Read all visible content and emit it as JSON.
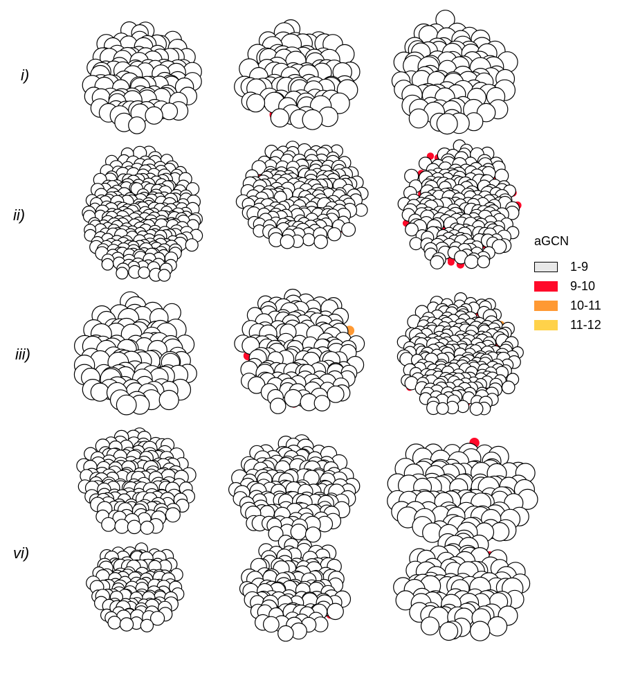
{
  "rows": [
    {
      "label": "i)"
    },
    {
      "label": "ii)"
    },
    {
      "label": "iii)"
    },
    {
      "label": "vi)"
    }
  ],
  "legend": {
    "title": "aGCN",
    "items": [
      {
        "label": "1-9",
        "color": "#e8e8e8",
        "border": "#000000"
      },
      {
        "label": "9-10",
        "color": "#ff0a2a",
        "border": "#ff0a2a"
      },
      {
        "label": "10-11",
        "color": "#ff9933",
        "border": "#ff9933"
      },
      {
        "label": "11-12",
        "color": "#ffd24a",
        "border": "#ffd24a"
      }
    ]
  },
  "colors": {
    "atom_fill": "#ffffff",
    "atom_stroke": "#000000",
    "gcn_9_10": "#ff0a2a",
    "gcn_10_11": "#ff9933",
    "gcn_11_12": "#ffd24a"
  }
}
